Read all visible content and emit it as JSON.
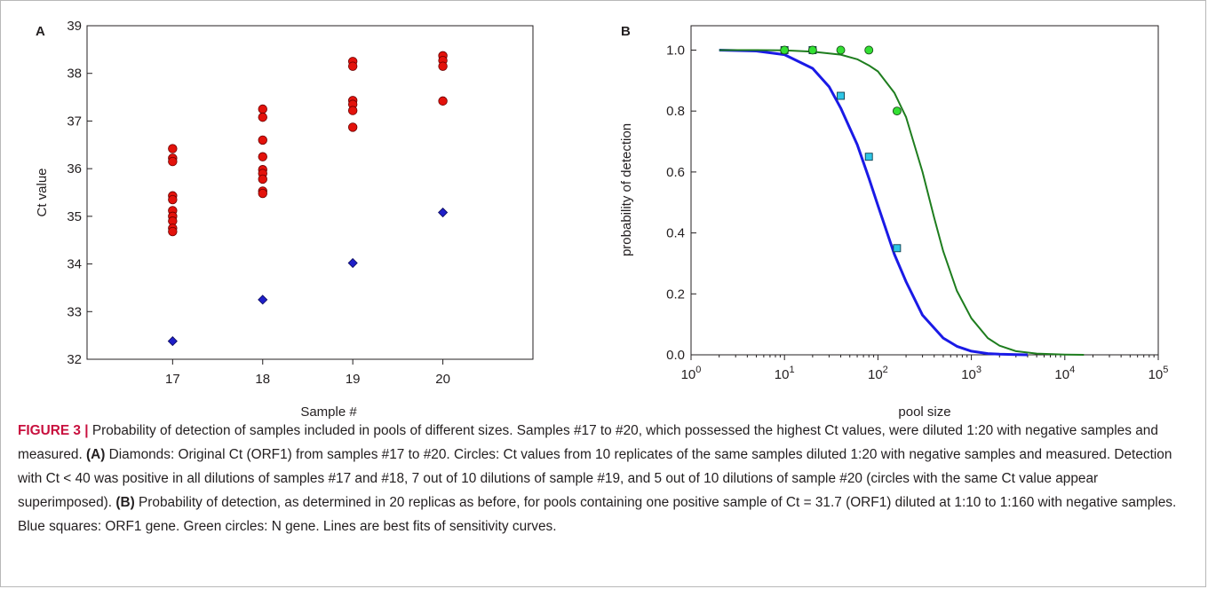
{
  "colors": {
    "red_circle": "#e3120b",
    "blue_diamond": "#1f1fc8",
    "blue_line": "#1a1ae6",
    "green_line": "#1e7d1e",
    "cyan_square": "#2ec6e6",
    "green_circle": "#33e033",
    "caption_accent": "#c8103e"
  },
  "chart_data": [
    {
      "panel": "A",
      "type": "scatter",
      "title": "",
      "xlabel": "Sample #",
      "ylabel": "Ct value",
      "xlim": [
        16.05,
        21.0
      ],
      "ylim": [
        32,
        39
      ],
      "x_ticks": [
        17,
        18,
        19,
        20
      ],
      "y_ticks": [
        32,
        33,
        34,
        35,
        36,
        37,
        38,
        39
      ],
      "grid": false,
      "series": [
        {
          "marker": "circle",
          "color": "#e3120b",
          "points": [
            [
              17,
              36.42
            ],
            [
              17,
              36.22
            ],
            [
              17,
              36.15
            ],
            [
              17,
              35.43
            ],
            [
              17,
              35.35
            ],
            [
              17,
              35.12
            ],
            [
              17,
              35.0
            ],
            [
              17,
              34.9
            ],
            [
              17,
              34.75
            ],
            [
              17,
              34.68
            ],
            [
              18,
              37.25
            ],
            [
              18,
              37.08
            ],
            [
              18,
              36.6
            ],
            [
              18,
              36.25
            ],
            [
              18,
              35.98
            ],
            [
              18,
              35.9
            ],
            [
              18,
              35.78
            ],
            [
              18,
              35.53
            ],
            [
              18,
              35.48
            ],
            [
              19,
              38.25
            ],
            [
              19,
              38.15
            ],
            [
              19,
              37.43
            ],
            [
              19,
              37.35
            ],
            [
              19,
              37.22
            ],
            [
              19,
              36.87
            ],
            [
              20,
              38.37
            ],
            [
              20,
              38.27
            ],
            [
              20,
              38.15
            ],
            [
              20,
              37.42
            ]
          ]
        },
        {
          "marker": "diamond",
          "color": "#1f1fc8",
          "points": [
            [
              17,
              32.38
            ],
            [
              18,
              33.25
            ],
            [
              19,
              34.02
            ],
            [
              20,
              35.08
            ]
          ]
        }
      ]
    },
    {
      "panel": "B",
      "type": "line",
      "title": "",
      "xlabel": "pool size",
      "ylabel": "probability of detection",
      "xscale": "log",
      "xlim": [
        1,
        100000
      ],
      "ylim": [
        0,
        1.08
      ],
      "x_ticks": [
        1,
        10,
        100,
        1000,
        10000,
        100000
      ],
      "x_tick_labels": [
        {
          "base": "10",
          "exp": "0"
        },
        {
          "base": "10",
          "exp": "1"
        },
        {
          "base": "10",
          "exp": "2"
        },
        {
          "base": "10",
          "exp": "3"
        },
        {
          "base": "10",
          "exp": "4"
        },
        {
          "base": "10",
          "exp": "5"
        }
      ],
      "y_ticks": [
        0,
        0.2,
        0.4,
        0.6,
        0.8,
        1.0
      ],
      "y_tick_labels": [
        "0.0",
        "0.2",
        "0.4",
        "0.6",
        "0.8",
        "1.0"
      ],
      "grid": false,
      "series": [
        {
          "kind": "points",
          "marker": "square",
          "color": "#2ec6e6",
          "x": [
            10,
            20,
            40,
            80,
            160
          ],
          "y": [
            1.0,
            1.0,
            0.85,
            0.65,
            0.35
          ]
        },
        {
          "kind": "points",
          "marker": "circle",
          "color": "#33e033",
          "x": [
            10,
            20,
            40,
            80,
            160
          ],
          "y": [
            1.0,
            1.0,
            1.0,
            1.0,
            0.8
          ]
        },
        {
          "kind": "curve",
          "color": "#1a1ae6",
          "x": [
            2,
            5,
            10,
            20,
            30,
            40,
            60,
            80,
            100,
            150,
            200,
            300,
            500,
            700,
            1000,
            1500,
            2000,
            3000,
            4000
          ],
          "y": [
            1.0,
            0.997,
            0.985,
            0.94,
            0.88,
            0.81,
            0.69,
            0.58,
            0.49,
            0.33,
            0.24,
            0.13,
            0.055,
            0.028,
            0.012,
            0.004,
            0.002,
            0.0005,
            0.0
          ]
        },
        {
          "kind": "curve",
          "color": "#1e7d1e",
          "x": [
            2,
            5,
            10,
            20,
            40,
            60,
            80,
            100,
            150,
            200,
            300,
            400,
            500,
            700,
            1000,
            1500,
            2000,
            3000,
            5000,
            10000,
            16000
          ],
          "y": [
            1.0,
            1.0,
            0.999,
            0.995,
            0.985,
            0.97,
            0.95,
            0.93,
            0.86,
            0.78,
            0.6,
            0.45,
            0.34,
            0.21,
            0.12,
            0.055,
            0.03,
            0.012,
            0.004,
            0.001,
            0.0
          ]
        }
      ]
    }
  ],
  "caption": {
    "label": "FIGURE 3 |",
    "intro": " Probability of detection of samples included in pools of different sizes. Samples #17 to #20, which possessed the highest Ct values, were diluted 1:20 with negative samples and measured. ",
    "a_ref": "(A)",
    "a_text": " Diamonds: Original Ct (ORF1) from samples #17 to #20. Circles: Ct values from 10 replicates of the same samples diluted 1:20 with negative samples and measured. Detection with Ct < 40 was positive in all dilutions of samples #17 and #18, 7 out of 10 dilutions of sample #19, and 5 out of 10 dilutions of sample #20 (circles with the same Ct value appear superimposed). ",
    "b_ref": "(B)",
    "b_text": " Probability of detection, as determined in 20 replicas as before, for pools containing one positive sample of Ct = 31.7 (ORF1) diluted at 1:10 to 1:160 with negative samples. Blue squares: ORF1 gene. Green circles: N gene. Lines are best fits of sensitivity curves."
  }
}
